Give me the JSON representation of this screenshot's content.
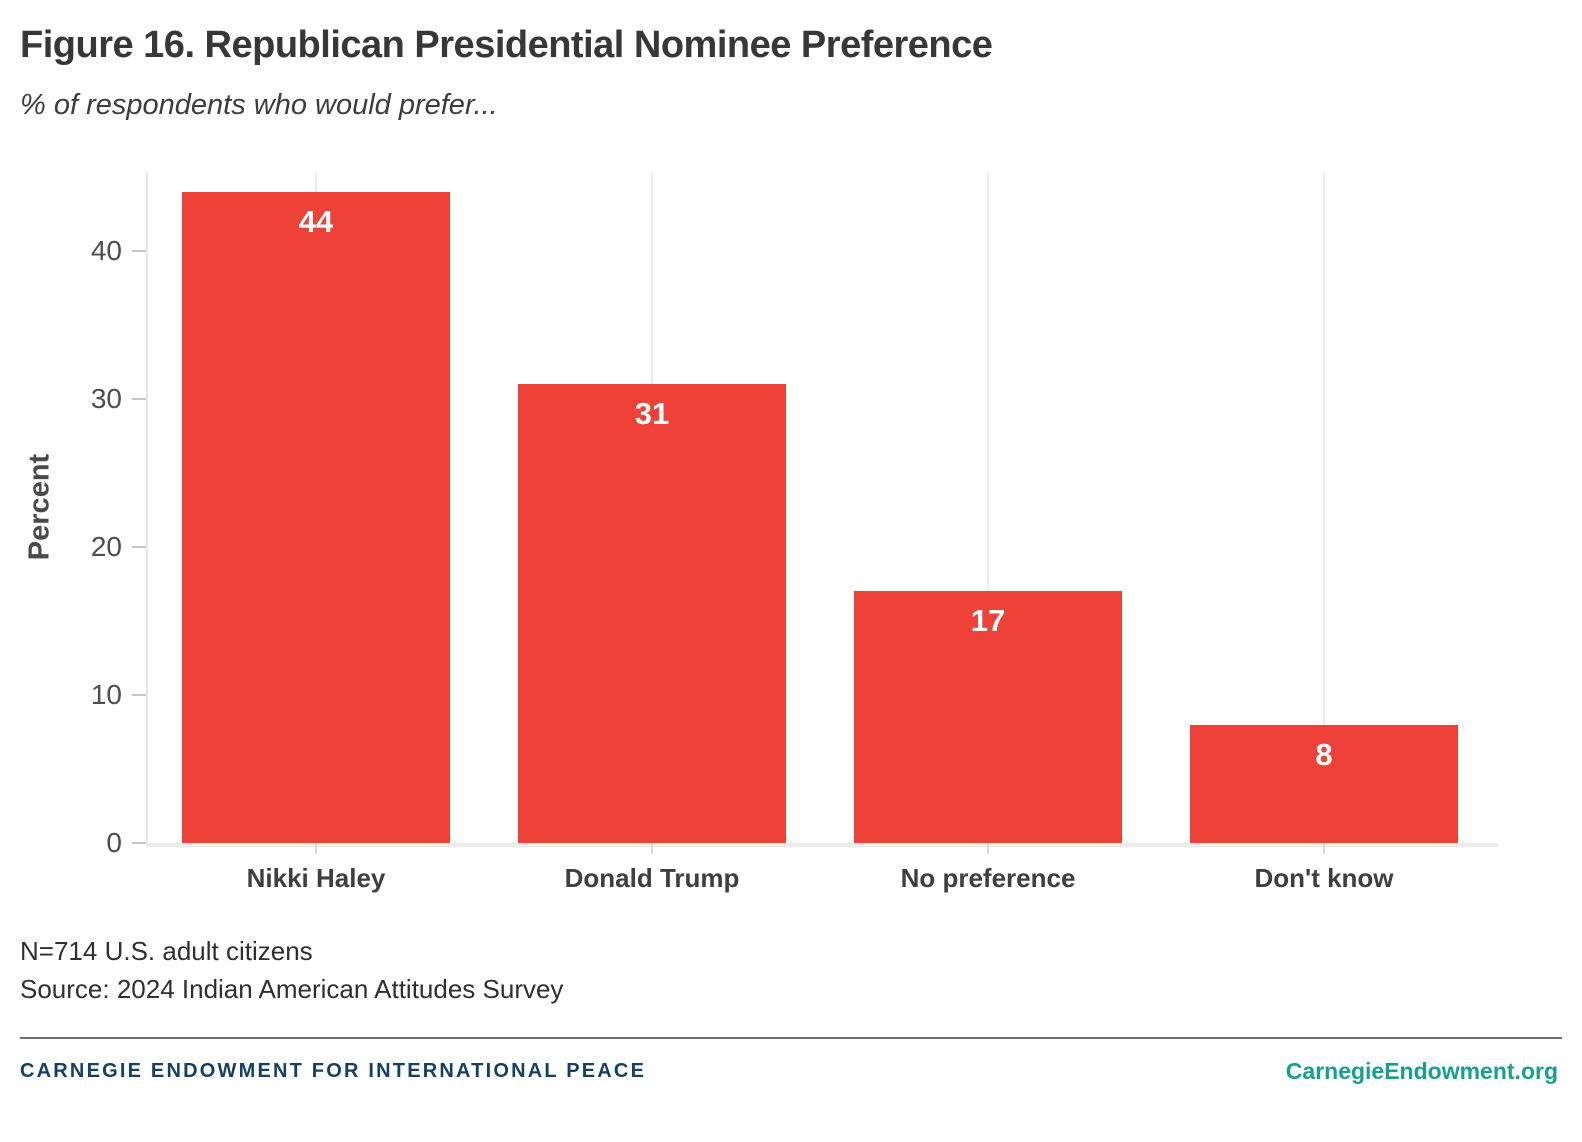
{
  "title": "Figure 16. Republican Presidential Nominee Preference",
  "subtitle": "% of respondents who would prefer...",
  "chart_data": {
    "type": "bar",
    "categories": [
      "Nikki Haley",
      "Donald Trump",
      "No preference",
      "Don't know"
    ],
    "values": [
      44,
      31,
      17,
      8
    ],
    "title": "Figure 16. Republican Presidential Nominee Preference",
    "subtitle": "% of respondents who would prefer...",
    "xlabel": "",
    "ylabel": "Percent",
    "yticks": [
      0,
      10,
      20,
      30,
      40
    ],
    "ylim": [
      0,
      45.3
    ],
    "bar_color": "#ee4137",
    "value_label_color": "#ffffff",
    "value_label_position": "inside-top",
    "grid": "vertical-category-gridlines",
    "legend": "none"
  },
  "notes": {
    "sample": "N=714 U.S. adult citizens",
    "source": "Source: 2024 Indian American Attitudes Survey"
  },
  "footer": {
    "org": "CARNEGIE ENDOWMENT FOR INTERNATIONAL PEACE",
    "site": "CarnegieEndowment.org",
    "org_color": "#173f66",
    "site_color": "#16a08d"
  }
}
